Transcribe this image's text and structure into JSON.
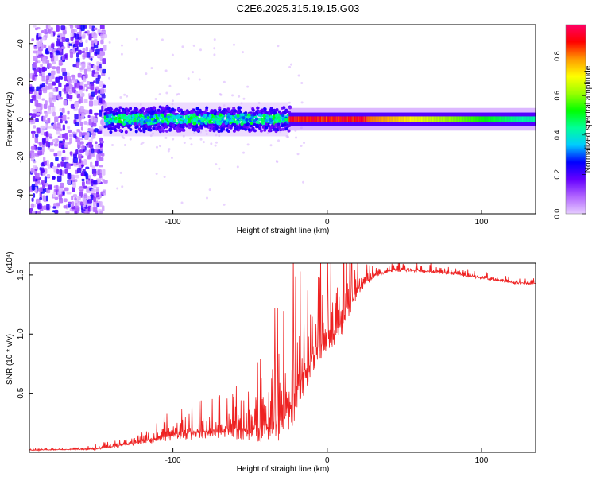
{
  "title": "C2E6.2025.315.19.15.G03",
  "chart_data": [
    {
      "type": "heatmap",
      "xlabel": "Height of straight line (km)",
      "ylabel": "Frequency (Hz)",
      "xlim": [
        -193,
        135
      ],
      "ylim": [
        -50,
        50
      ],
      "xticks": [
        -100,
        0,
        100
      ],
      "yticks": [
        -40,
        -20,
        0,
        20,
        40
      ],
      "grid": false,
      "colorbar": {
        "label": "Normalized spectral amplitude",
        "range": [
          0,
          0.96
        ],
        "ticks": [
          "0.0",
          "0.2",
          "0.4",
          "0.6",
          "0.8"
        ],
        "tick_values": [
          0,
          0.2,
          0.4,
          0.6,
          0.8
        ],
        "colors": [
          "#e6ccff",
          "#b266ff",
          "#6600ff",
          "#0000ff",
          "#00ccff",
          "#00ff99",
          "#00ff00",
          "#99ff00",
          "#ffff00",
          "#ff9900",
          "#ff0000",
          "#ff0066"
        ]
      },
      "regions": [
        {
          "x_range": [
            -193,
            -145
          ],
          "freq_range": [
            -50,
            50
          ],
          "amplitude": "low-moderate scattered noise"
        },
        {
          "x_range": [
            -145,
            -25
          ],
          "freq_range": [
            -7,
            7
          ],
          "amplitude": "moderate band centred near 0 Hz"
        },
        {
          "x_range": [
            -25,
            135
          ],
          "freq_range": [
            -4,
            4
          ],
          "amplitude": "high narrow band at 0 Hz, peak near 0.95 around -20 to 20 km"
        }
      ]
    },
    {
      "type": "line",
      "xlabel": "Height of straight line (km)",
      "ylabel": "SNR (10 * v/v)",
      "y_multiplier": "(x10⁴)",
      "xlim": [
        -193,
        135
      ],
      "ylim": [
        0,
        1.6
      ],
      "xticks": [
        -100,
        0,
        100
      ],
      "ytick_labels": [
        "0.5",
        "1.0",
        "1.5"
      ],
      "ytick_values": [
        0.5,
        1.0,
        1.5
      ],
      "grid": false,
      "color": "#ee2222",
      "x": [
        -193,
        -170,
        -150,
        -140,
        -130,
        -120,
        -110,
        -100,
        -90,
        -80,
        -70,
        -60,
        -50,
        -40,
        -35,
        -30,
        -25,
        -20,
        -15,
        -10,
        -5,
        0,
        5,
        10,
        15,
        20,
        30,
        40,
        50,
        60,
        70,
        80,
        90,
        100,
        110,
        120,
        135
      ],
      "base": [
        0.02,
        0.025,
        0.03,
        0.05,
        0.07,
        0.1,
        0.13,
        0.16,
        0.18,
        0.2,
        0.2,
        0.21,
        0.22,
        0.25,
        0.28,
        0.33,
        0.4,
        0.55,
        0.7,
        0.85,
        0.95,
        1.0,
        1.05,
        1.15,
        1.3,
        1.4,
        1.5,
        1.54,
        1.55,
        1.54,
        1.53,
        1.52,
        1.5,
        1.48,
        1.46,
        1.44,
        1.43
      ],
      "spread": [
        0.01,
        0.01,
        0.02,
        0.03,
        0.05,
        0.07,
        0.1,
        0.12,
        0.15,
        0.17,
        0.18,
        0.2,
        0.25,
        0.35,
        0.4,
        0.45,
        0.5,
        0.5,
        0.45,
        0.4,
        0.35,
        0.3,
        0.3,
        0.3,
        0.25,
        0.15,
        0.06,
        0.04,
        0.04,
        0.04,
        0.04,
        0.04,
        0.04,
        0.03,
        0.03,
        0.03,
        0.03
      ]
    }
  ]
}
